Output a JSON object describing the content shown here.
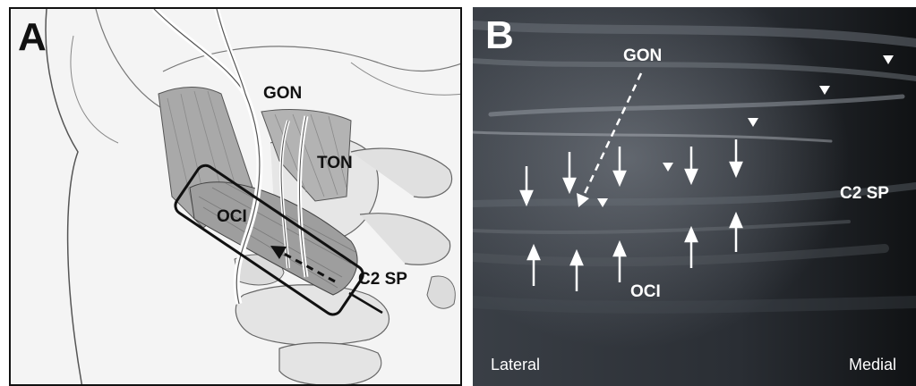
{
  "panel_a": {
    "letter": "A",
    "labels": {
      "gon": "GON",
      "ton": "TON",
      "oci": "OCI",
      "c2sp": "C2 SP"
    }
  },
  "panel_b": {
    "letter": "B",
    "labels": {
      "gon": "GON",
      "oci": "OCI",
      "c2sp": "C2 SP",
      "lateral": "Lateral",
      "medial": "Medial"
    }
  },
  "colors": {
    "frame": "#111111",
    "illustration_bg": "#f4f4f4",
    "ultrasound_bg": "#1f2226",
    "annotation": "#ffffff"
  }
}
